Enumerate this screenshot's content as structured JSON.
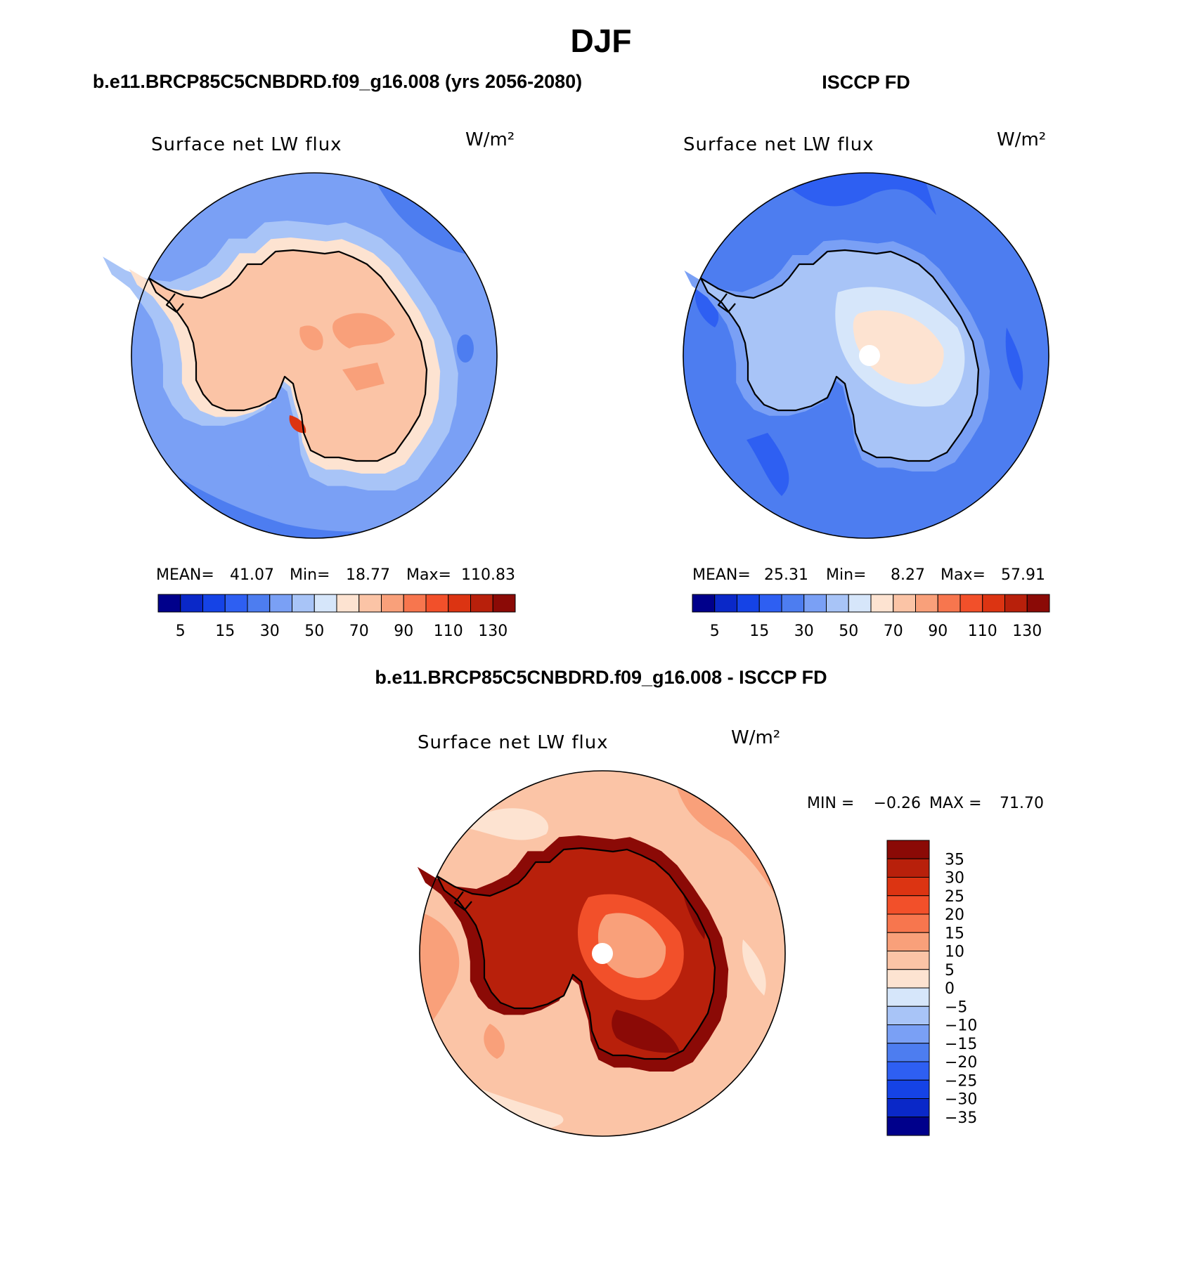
{
  "title": "DJF",
  "panels": [
    {
      "heading": "b.e11.BRCP85C5CNBDRD.f09_g16.008 (yrs 2056-2080)",
      "variable": "Surface net LW flux",
      "units": "W/m²",
      "stats": {
        "mean_label": "MEAN=",
        "mean": "41.07",
        "min_label": "Min=",
        "min": "18.77",
        "max_label": "Max=",
        "max": "110.83"
      },
      "field": {
        "ocean": 35,
        "ocean_north": 32,
        "ocean_far": 26,
        "coast_band": 48,
        "sea_ice": 60,
        "continent": 70,
        "continent_patch": 80,
        "ross_hot": 110
      }
    },
    {
      "heading": "ISCCP FD",
      "variable": "Surface net LW flux",
      "units": "W/m²",
      "stats": {
        "mean_label": "MEAN=",
        "mean": "25.31",
        "min_label": "Min=",
        "min": "8.27",
        "max_label": "Max=",
        "max": "57.91"
      },
      "field": {
        "ocean": 25,
        "ocean_dark": 18,
        "coast_band": 35,
        "plateau_outer": 45,
        "plateau_inner": 52,
        "plateau_core": 60
      }
    },
    {
      "heading": "b.e11.BRCP85C5CNBDRD.f09_g16.008 - ISCCP FD",
      "variable": "Surface net LW flux",
      "units": "W/m²",
      "stats": {
        "min_label": "MIN =",
        "min": "−0.26",
        "max_label": "MAX =",
        "max": "71.70"
      },
      "field": {
        "ocean": 7,
        "ocean_warm": 12,
        "ocean_cool": 2,
        "coast_ring": 40,
        "continent": 30,
        "plateau": 22,
        "plateau_core": 12,
        "ice_shelf": 38
      }
    }
  ],
  "colorbars": {
    "absolute": {
      "levels": [
        5,
        10,
        15,
        20,
        30,
        40,
        50,
        60,
        70,
        80,
        90,
        100,
        110,
        120,
        130
      ],
      "tick_labels": [
        "5",
        "15",
        "30",
        "50",
        "70",
        "90",
        "110",
        "130"
      ],
      "colors": [
        "#00008b",
        "#0a28c8",
        "#1543e6",
        "#2e5ff2",
        "#4d7df0",
        "#7aa0f5",
        "#a8c4f7",
        "#d6e6fa",
        "#fde3d1",
        "#fbc4a6",
        "#f9a07a",
        "#f7764e",
        "#f2502a",
        "#dc3412",
        "#b8200b",
        "#8b0a06"
      ]
    },
    "difference": {
      "levels": [
        -35,
        -30,
        -25,
        -20,
        -15,
        -10,
        -5,
        0,
        5,
        10,
        15,
        20,
        25,
        30,
        35
      ],
      "tick_labels": [
        "35",
        "30",
        "25",
        "20",
        "15",
        "10",
        "5",
        "0",
        "−5",
        "−10",
        "−15",
        "−20",
        "−25",
        "−30",
        "−35"
      ],
      "colors": [
        "#00008b",
        "#0a28c8",
        "#1543e6",
        "#2e5ff2",
        "#4d7df0",
        "#7aa0f5",
        "#a8c4f7",
        "#d6e6fa",
        "#fde3d1",
        "#fbc4a6",
        "#f9a07a",
        "#f7764e",
        "#f2502a",
        "#dc3412",
        "#b8200b",
        "#8b0a06"
      ]
    }
  }
}
